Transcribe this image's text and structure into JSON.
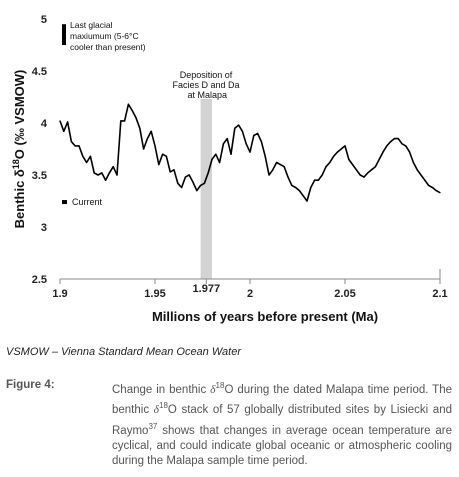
{
  "chart_data": {
    "type": "line",
    "title": "",
    "xlabel": "Millions of years before present (Ma)",
    "ylabel_pre": "Benthic δ",
    "ylabel_sup": "18",
    "ylabel_post": "O (‰ VSMOW)",
    "xlim": [
      1.9,
      2.1
    ],
    "ylim": [
      2.5,
      5
    ],
    "x_ticks": [
      1.9,
      1.95,
      2.0,
      2.05,
      2.1
    ],
    "x_tick_labels": [
      "1.9",
      "1.95",
      "2",
      "2.05",
      "2.1"
    ],
    "highlight_tick": 1.977,
    "highlight_tick_label": "1.977",
    "y_ticks": [
      2.5,
      3,
      3.5,
      4,
      4.5,
      5
    ],
    "y_tick_labels": [
      "2.5",
      "3",
      "3.5",
      "4",
      "4.5",
      "5"
    ],
    "grid": false,
    "series_color": "#000000",
    "band": {
      "x0": 1.974,
      "x1": 1.98,
      "color": "#d3d3d3"
    },
    "band_label": [
      "Deposition of",
      "Facies D and Da",
      "at Malapa"
    ],
    "glacial_marker": {
      "y0": 4.75,
      "y1": 4.95,
      "label": [
        "Last glacial",
        "maxiumum (5-6°C",
        "cooler than present)"
      ]
    },
    "current_marker": {
      "y": 3.24,
      "label": "Current"
    },
    "x": [
      1.9,
      1.902,
      1.904,
      1.906,
      1.908,
      1.91,
      1.912,
      1.914,
      1.916,
      1.918,
      1.92,
      1.922,
      1.924,
      1.926,
      1.928,
      1.93,
      1.932,
      1.934,
      1.936,
      1.938,
      1.94,
      1.942,
      1.944,
      1.946,
      1.948,
      1.95,
      1.952,
      1.954,
      1.956,
      1.958,
      1.96,
      1.962,
      1.964,
      1.966,
      1.968,
      1.97,
      1.972,
      1.974,
      1.976,
      1.978,
      1.98,
      1.982,
      1.984,
      1.986,
      1.988,
      1.99,
      1.992,
      1.994,
      1.996,
      1.998,
      2.0,
      2.002,
      2.004,
      2.006,
      2.008,
      2.01,
      2.012,
      2.014,
      2.016,
      2.018,
      2.02,
      2.022,
      2.024,
      2.026,
      2.028,
      2.03,
      2.032,
      2.034,
      2.036,
      2.038,
      2.04,
      2.042,
      2.044,
      2.046,
      2.048,
      2.05,
      2.052,
      2.054,
      2.056,
      2.058,
      2.06,
      2.062,
      2.064,
      2.066,
      2.068,
      2.07,
      2.072,
      2.074,
      2.076,
      2.078,
      2.08,
      2.082,
      2.084,
      2.086,
      2.088,
      2.09,
      2.092,
      2.094,
      2.096,
      2.098,
      2.1
    ],
    "y": [
      4.02,
      3.92,
      4.01,
      3.82,
      3.78,
      3.78,
      3.68,
      3.62,
      3.68,
      3.52,
      3.5,
      3.52,
      3.45,
      3.52,
      3.58,
      3.5,
      4.02,
      4.02,
      4.18,
      4.12,
      4.05,
      3.95,
      3.75,
      3.85,
      3.92,
      3.78,
      3.6,
      3.7,
      3.68,
      3.53,
      3.55,
      3.42,
      3.38,
      3.48,
      3.5,
      3.43,
      3.35,
      3.4,
      3.42,
      3.52,
      3.65,
      3.7,
      3.62,
      3.8,
      3.85,
      3.7,
      3.95,
      3.98,
      3.92,
      3.8,
      3.72,
      3.88,
      3.9,
      3.82,
      3.68,
      3.5,
      3.55,
      3.62,
      3.6,
      3.58,
      3.48,
      3.4,
      3.38,
      3.35,
      3.3,
      3.25,
      3.38,
      3.45,
      3.45,
      3.5,
      3.58,
      3.62,
      3.68,
      3.72,
      3.75,
      3.78,
      3.65,
      3.6,
      3.55,
      3.5,
      3.48,
      3.52,
      3.55,
      3.58,
      3.65,
      3.72,
      3.78,
      3.82,
      3.85,
      3.85,
      3.8,
      3.78,
      3.72,
      3.62,
      3.55,
      3.5,
      3.45,
      3.4,
      3.38,
      3.35,
      3.33
    ]
  },
  "footnote": "VSMOW – Vienna Standard Mean Ocean Water",
  "caption": {
    "label": "Figure 4:",
    "text_1": "Change in benthic ",
    "delta": "δ",
    "sup_1": "18",
    "text_2": "O during the dated Malapa time period. The benthic ",
    "delta_2": "δ",
    "sup_2": "18",
    "text_3": "O stack of 57 globally distributed sites by Lisiecki and Raymo",
    "sup_ref": "37",
    "text_4": " shows that changes in average ocean temperature are cyclical, and could indicate global oceanic or atmospheric cooling during the Malapa sample time period."
  }
}
